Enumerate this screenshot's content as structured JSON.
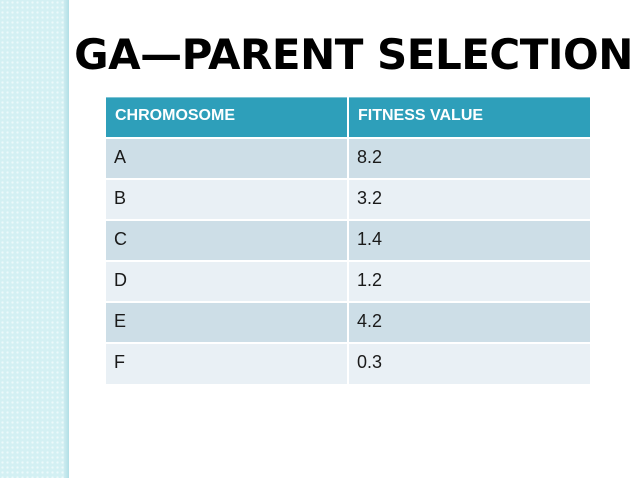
{
  "slide": {
    "title": "GA—PARENT SELECTION"
  },
  "table": {
    "headers": [
      "CHROMOSOME",
      "FITNESS VALUE"
    ],
    "rows": [
      {
        "chromosome": "A",
        "fitness": "8.2"
      },
      {
        "chromosome": "B",
        "fitness": "3.2"
      },
      {
        "chromosome": "C",
        "fitness": "1.4"
      },
      {
        "chromosome": "D",
        "fitness": "1.2"
      },
      {
        "chromosome": "E",
        "fitness": "4.2"
      },
      {
        "chromosome": "F",
        "fitness": "0.3"
      }
    ]
  },
  "colors": {
    "header_bg": "#2E9FBA",
    "header_text": "#FFFFFF",
    "row_dark_bg": "#CDDEE7",
    "row_light_bg": "#E9F0F5",
    "cell_text": "#1A1A1A",
    "title_text": "#000000",
    "sidebar_bg": "#D3F0F3",
    "sidebar_edge": "#B2DFE6",
    "grid_line": "#FFFFFF"
  },
  "chart_data": {
    "type": "table",
    "title": "GA—PARENT SELECTION",
    "columns": [
      "CHROMOSOME",
      "FITNESS VALUE"
    ],
    "rows": [
      [
        "A",
        8.2
      ],
      [
        "B",
        3.2
      ],
      [
        "C",
        1.4
      ],
      [
        "D",
        1.2
      ],
      [
        "E",
        4.2
      ],
      [
        "F",
        0.3
      ]
    ]
  }
}
